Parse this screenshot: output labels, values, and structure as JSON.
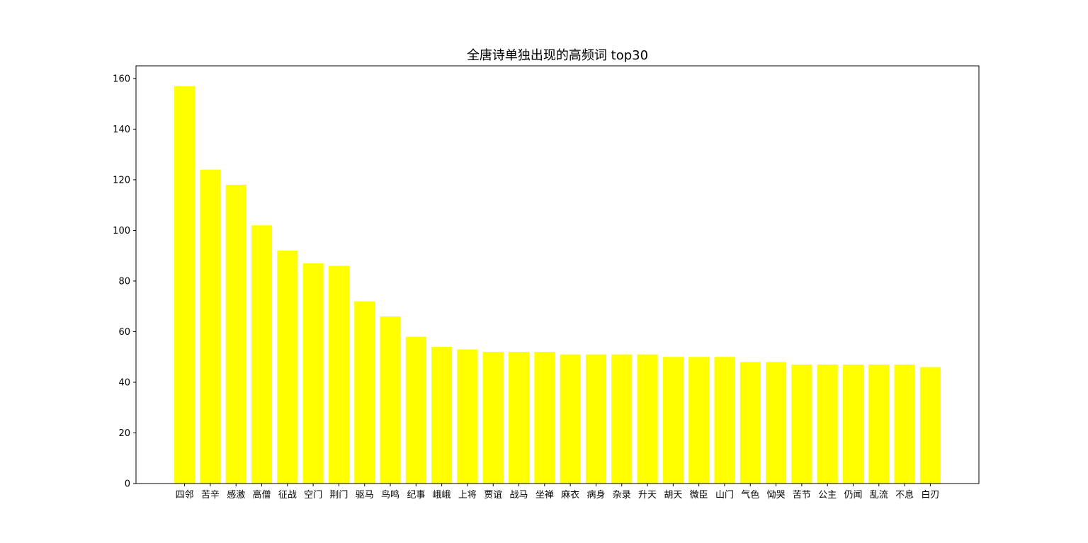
{
  "chart_data": {
    "type": "bar",
    "title": "全唐诗单独出现的高频词 top30",
    "xlabel": "",
    "ylabel": "",
    "ylim": [
      0,
      165
    ],
    "yticks": [
      0,
      20,
      40,
      60,
      80,
      100,
      120,
      140,
      160
    ],
    "bar_color": "#ffff00",
    "categories": [
      "四邻",
      "苦辛",
      "感激",
      "高僧",
      "征战",
      "空门",
      "荆门",
      "驱马",
      "鸟鸣",
      "纪事",
      "峨峨",
      "上将",
      "贾谊",
      "战马",
      "坐禅",
      "麻衣",
      "病身",
      "杂录",
      "升天",
      "胡天",
      "微臣",
      "山门",
      "气色",
      "恸哭",
      "苦节",
      "公主",
      "仍闻",
      "乱流",
      "不息",
      "白刃"
    ],
    "values": [
      157,
      124,
      118,
      102,
      92,
      87,
      86,
      72,
      66,
      58,
      54,
      53,
      52,
      52,
      52,
      51,
      51,
      51,
      51,
      50,
      50,
      50,
      48,
      48,
      47,
      47,
      47,
      47,
      47,
      46
    ],
    "grid": false,
    "legend": "none"
  }
}
